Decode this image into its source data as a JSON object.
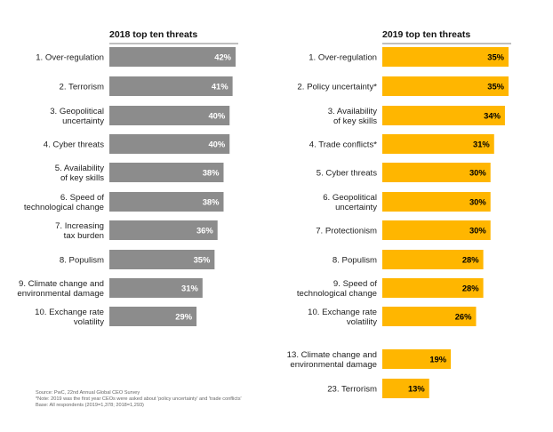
{
  "chart_data": [
    {
      "type": "bar",
      "orientation": "horizontal",
      "title": "2018 top ten threats",
      "bar_color": "#8c8c8c",
      "label_color": "#ffffff",
      "categories": [
        [
          "1. Over-regulation"
        ],
        [
          "2. Terrorism"
        ],
        [
          "3. Geopolitical",
          "uncertainty"
        ],
        [
          "4. Cyber threats"
        ],
        [
          "5. Availability",
          "of key skills"
        ],
        [
          "6. Speed of",
          "technological change"
        ],
        [
          "7. Increasing",
          "tax burden"
        ],
        [
          "8. Populism"
        ],
        [
          "9. Climate change and",
          "environmental damage"
        ],
        [
          "10. Exchange rate",
          "volatility"
        ]
      ],
      "values": [
        42,
        41,
        40,
        40,
        38,
        38,
        36,
        35,
        31,
        29
      ],
      "value_labels": [
        "42%",
        "41%",
        "40%",
        "40%",
        "38%",
        "38%",
        "36%",
        "35%",
        "31%",
        "29%"
      ],
      "unit": "%"
    },
    {
      "type": "bar",
      "orientation": "horizontal",
      "title": "2019 top ten threats",
      "bar_color": "#ffb600",
      "label_color": "#000000",
      "categories": [
        [
          "1. Over-regulation"
        ],
        [
          "2. Policy uncertainty*"
        ],
        [
          "3. Availability",
          "of key skills"
        ],
        [
          "4. Trade conflicts*"
        ],
        [
          "5. Cyber threats"
        ],
        [
          "6. Geopolitical",
          "uncertainty"
        ],
        [
          "7. Protectionism"
        ],
        [
          "8. Populism"
        ],
        [
          "9. Speed of",
          "technological change"
        ],
        [
          "10. Exchange rate",
          "volatility"
        ],
        [
          "13. Climate change and",
          "environmental damage"
        ],
        [
          "23. Terrorism"
        ]
      ],
      "values": [
        35,
        35,
        34,
        31,
        30,
        30,
        30,
        28,
        28,
        26,
        19,
        13
      ],
      "value_labels": [
        "35%",
        "35%",
        "34%",
        "31%",
        "30%",
        "30%",
        "30%",
        "28%",
        "28%",
        "26%",
        "19%",
        "13%"
      ],
      "unit": "%"
    }
  ],
  "footnotes": [
    "Source: PwC, 22nd Annual Global CEO Survey",
    "*Note: 2019 was the first year CEOs were asked about 'policy uncertainty' and 'trade conflicts'",
    "Base: All respondents (2019=1,378; 2018=1,293)"
  ]
}
